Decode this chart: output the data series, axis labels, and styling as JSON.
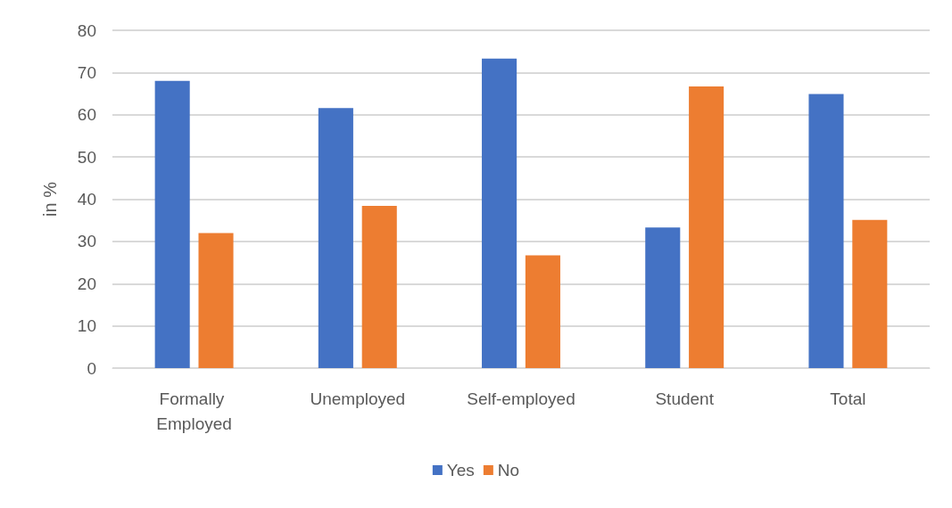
{
  "chart_data": {
    "type": "bar",
    "ylabel": "in %",
    "categories": [
      "Formally Employed",
      "Unemployed",
      "Self-employed",
      "Student",
      "Total"
    ],
    "series": [
      {
        "name": "Yes",
        "color": "#4472c4",
        "values": [
          68.0,
          61.6,
          73.3,
          33.3,
          64.9
        ]
      },
      {
        "name": "No",
        "color": "#ed7d31",
        "values": [
          32.0,
          38.4,
          26.7,
          66.7,
          35.1
        ]
      }
    ],
    "ylim": [
      0,
      80
    ],
    "yticks": [
      0,
      10,
      20,
      30,
      40,
      50,
      60,
      70,
      80
    ],
    "grid": "y",
    "legend": "bottom"
  }
}
